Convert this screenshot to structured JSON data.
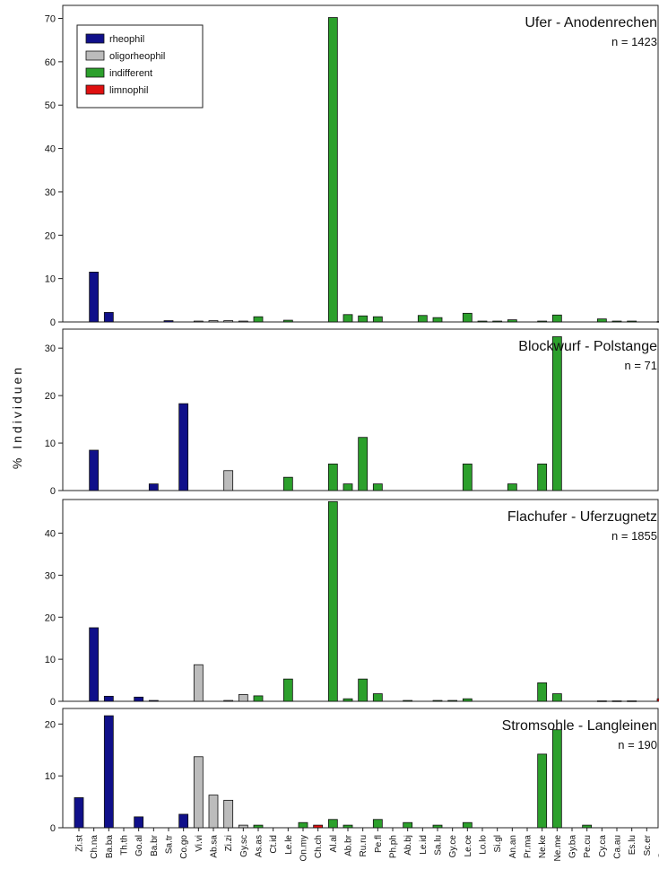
{
  "chart_data": {
    "type": "bar",
    "ylabel": "% Individuen",
    "colors": {
      "rheophil": "#10108a",
      "oligorheophil": "#bcbcbc",
      "indifferent": "#2ca02c",
      "limnophil": "#e01010"
    },
    "legend": [
      {
        "key": "rheophil",
        "label": "rheophil"
      },
      {
        "key": "oligorheophil",
        "label": "oligorheophil"
      },
      {
        "key": "indifferent",
        "label": "indifferent"
      },
      {
        "key": "limnophil",
        "label": "limnophil"
      }
    ],
    "categories": [
      "Zi.st",
      "Ch.na",
      "Ba.ba",
      "Th.th",
      "Go.al",
      "Ba.br",
      "Sa.tr",
      "Co.go",
      "Vi.vi",
      "Ab.sa",
      "Zi.zi",
      "Gy.sc",
      "As.as",
      "Ct.id",
      "Le.le",
      "On.my",
      "Ch.ch",
      "Al.al",
      "Ab.br",
      "Ru.ru",
      "Pe.fl",
      "Ph.ph",
      "Ab.bj",
      "Le.id",
      "Sa.lu",
      "Gy.ce",
      "Le.ce",
      "Lo.lo",
      "Si.gl",
      "An.an",
      "Pr.ma",
      "Ne.ke",
      "Ne.me",
      "Gy.ba",
      "Pe.cu",
      "Cy.ca",
      "Ca.au",
      "Es.lu",
      "Sc.er",
      "Ga.ac"
    ],
    "category_groups": [
      "rheophil",
      "rheophil",
      "rheophil",
      "rheophil",
      "rheophil",
      "rheophil",
      "rheophil",
      "rheophil",
      "oligorheophil",
      "oligorheophil",
      "oligorheophil",
      "oligorheophil",
      "indifferent",
      "indifferent",
      "indifferent",
      "indifferent",
      "limnophil",
      "indifferent",
      "indifferent",
      "indifferent",
      "indifferent",
      "indifferent",
      "indifferent",
      "indifferent",
      "indifferent",
      "indifferent",
      "indifferent",
      "indifferent",
      "indifferent",
      "indifferent",
      "indifferent",
      "indifferent",
      "indifferent",
      "indifferent",
      "indifferent",
      "indifferent",
      "indifferent",
      "indifferent",
      "indifferent",
      "limnophil"
    ],
    "panels": [
      {
        "title": "Ufer - Anodenrechen",
        "n_label": "n = 1423",
        "ylim": [
          0,
          73
        ],
        "yticks": [
          0,
          10,
          20,
          30,
          40,
          50,
          60,
          70
        ],
        "legend_shown": true,
        "values": [
          0,
          11.5,
          2.2,
          0,
          0,
          0,
          0.3,
          0,
          0.2,
          0.3,
          0.3,
          0.2,
          1.2,
          0,
          0.4,
          0,
          0,
          70.2,
          1.7,
          1.4,
          1.2,
          0,
          0,
          1.5,
          1.0,
          0,
          2.0,
          0.2,
          0.2,
          0.5,
          0,
          0.2,
          1.6,
          0,
          0,
          0.7,
          0.2,
          0.2,
          0,
          0.1
        ]
      },
      {
        "title": "Blockwurf - Polstange",
        "n_label": "n = 71",
        "ylim": [
          0,
          34
        ],
        "yticks": [
          0,
          10,
          20,
          30
        ],
        "legend_shown": false,
        "values": [
          0,
          8.5,
          0,
          0,
          0,
          1.4,
          0,
          18.3,
          0,
          0,
          4.2,
          0,
          0,
          0,
          2.8,
          0,
          0,
          5.6,
          1.4,
          11.2,
          1.4,
          0,
          0,
          0,
          0,
          0,
          5.6,
          0,
          0,
          1.4,
          0,
          5.6,
          32.4,
          0,
          0,
          0,
          0,
          0,
          0,
          0
        ]
      },
      {
        "title": "Flachufer - Uferzugnetz",
        "n_label": "n = 1855",
        "ylim": [
          0,
          48
        ],
        "yticks": [
          0,
          10,
          20,
          30,
          40
        ],
        "legend_shown": false,
        "values": [
          0,
          17.5,
          1.2,
          0,
          1.0,
          0.2,
          0,
          0,
          8.7,
          0,
          0.2,
          1.6,
          1.3,
          0,
          5.3,
          0,
          0,
          47.5,
          0.6,
          5.3,
          1.8,
          0,
          0.2,
          0,
          0.2,
          0.2,
          0.6,
          0,
          0,
          0,
          0,
          4.4,
          1.8,
          0,
          0,
          0.1,
          0.1,
          0.1,
          0,
          0.6
        ]
      },
      {
        "title": "Stromsohle - Langleinen",
        "n_label": "n = 190",
        "ylim": [
          0,
          23
        ],
        "yticks": [
          0,
          10,
          20
        ],
        "legend_shown": false,
        "values": [
          5.8,
          0,
          21.6,
          0,
          2.1,
          0,
          0,
          2.6,
          13.7,
          6.3,
          5.3,
          0.5,
          0.5,
          0,
          0,
          1.0,
          0.5,
          1.6,
          0.5,
          0,
          1.6,
          0,
          1.0,
          0,
          0.5,
          0,
          1.0,
          0,
          0,
          0,
          0,
          14.2,
          18.9,
          0,
          0.5,
          0,
          0,
          0,
          0,
          0
        ]
      }
    ]
  }
}
